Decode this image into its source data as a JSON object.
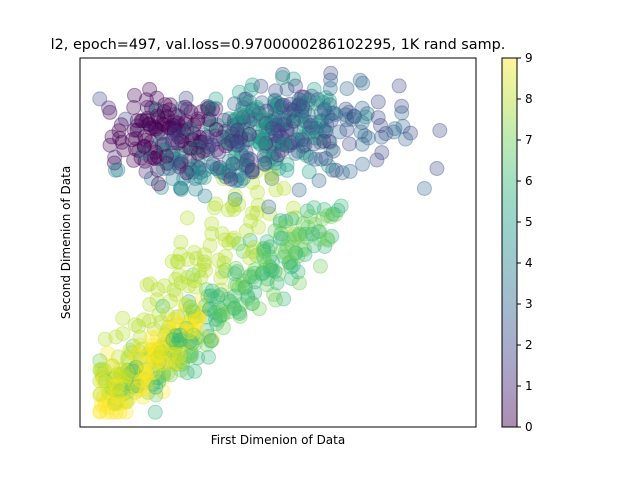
{
  "chart_data": {
    "type": "scatter",
    "title": "l2, epoch=497, val.loss=0.9700000286102295, 1K rand samp.",
    "xlabel": "First Dimenion of Data",
    "ylabel": "Second Dimenion of Data",
    "xlim": [
      0,
      100
    ],
    "ylim": [
      0,
      100
    ],
    "xticks_shown": false,
    "yticks_shown": false,
    "grid": false,
    "marker": "circle",
    "marker_alpha": 0.3,
    "colormap": "viridis",
    "colorbar": {
      "range": [
        0,
        9
      ],
      "ticks": [
        "0",
        "1",
        "2",
        "3",
        "4",
        "5",
        "6",
        "7",
        "8",
        "9"
      ],
      "stops": [
        "#440154",
        "#482878",
        "#3e4989",
        "#31688e",
        "#26828e",
        "#1f9e89",
        "#35b779",
        "#6ece58",
        "#b5de2b",
        "#fde725"
      ]
    },
    "clusters": [
      {
        "label": 0,
        "cx": 22,
        "cy": 79,
        "sx": 7,
        "sy": 5,
        "n": 110
      },
      {
        "label": 1,
        "cx": 37,
        "cy": 79,
        "sx": 13,
        "sy": 7,
        "n": 60
      },
      {
        "label": 2,
        "cx": 52,
        "cy": 82,
        "sx": 14,
        "sy": 6,
        "n": 90
      },
      {
        "label": 3,
        "cx": 60,
        "cy": 80,
        "sx": 12,
        "sy": 6,
        "n": 80
      },
      {
        "label": 4,
        "cx": 30,
        "cy": 70,
        "sx": 10,
        "sy": 5,
        "n": 50
      },
      {
        "label": 5,
        "cx": 48,
        "cy": 80,
        "sx": 10,
        "sy": 6,
        "n": 110
      },
      {
        "label": 6,
        "cx": 45,
        "cy": 38,
        "sx": 10,
        "sy": 8,
        "n": 110
      },
      {
        "label": 7,
        "cx": 46,
        "cy": 40,
        "sx": 12,
        "sy": 10,
        "n": 120
      },
      {
        "label": 8,
        "cx": 26,
        "cy": 35,
        "sx": 12,
        "sy": 15,
        "n": 130
      },
      {
        "label": 9,
        "cx": 18,
        "cy": 20,
        "sx": 6,
        "sy": 10,
        "n": 140
      }
    ]
  }
}
